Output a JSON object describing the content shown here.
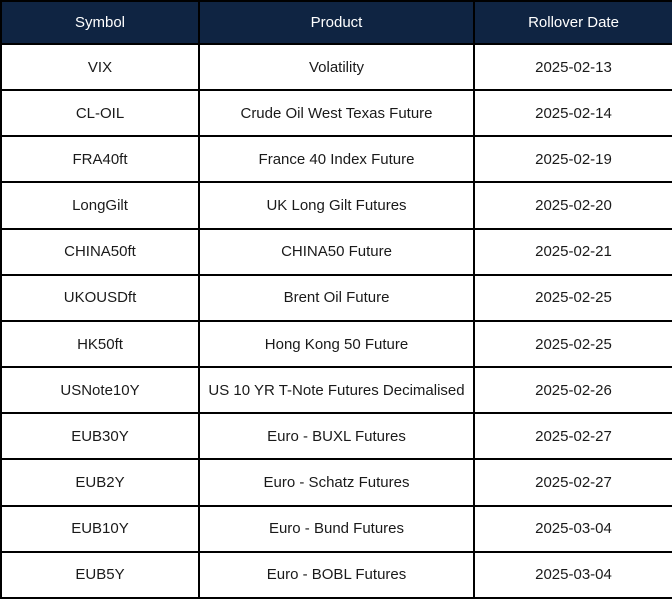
{
  "table": {
    "columns": [
      "Symbol",
      "Product",
      "Rollover Date"
    ],
    "rows": [
      {
        "symbol": "VIX",
        "product": "Volatility",
        "rollover_date": "2025-02-13"
      },
      {
        "symbol": "CL-OIL",
        "product": "Crude Oil West Texas Future",
        "rollover_date": "2025-02-14"
      },
      {
        "symbol": "FRA40ft",
        "product": "France 40 Index Future",
        "rollover_date": "2025-02-19"
      },
      {
        "symbol": "LongGilt",
        "product": "UK Long Gilt Futures",
        "rollover_date": "2025-02-20"
      },
      {
        "symbol": "CHINA50ft",
        "product": "CHINA50 Future",
        "rollover_date": "2025-02-21"
      },
      {
        "symbol": "UKOUSDft",
        "product": "Brent Oil Future",
        "rollover_date": "2025-02-25"
      },
      {
        "symbol": "HK50ft",
        "product": "Hong Kong 50 Future",
        "rollover_date": "2025-02-25"
      },
      {
        "symbol": "USNote10Y",
        "product": "US 10 YR T-Note Futures Decimalised",
        "rollover_date": "2025-02-26"
      },
      {
        "symbol": "EUB30Y",
        "product": "Euro - BUXL Futures",
        "rollover_date": "2025-02-27"
      },
      {
        "symbol": "EUB2Y",
        "product": "Euro - Schatz Futures",
        "rollover_date": "2025-02-27"
      },
      {
        "symbol": "EUB10Y",
        "product": "Euro - Bund Futures",
        "rollover_date": "2025-03-04"
      },
      {
        "symbol": "EUB5Y",
        "product": "Euro - BOBL Futures",
        "rollover_date": "2025-03-04"
      }
    ]
  },
  "colors": {
    "header_bg": "#0f2442",
    "header_text": "#ffffff",
    "body_bg": "#ffffff",
    "border": "#000000"
  },
  "chart_data": {
    "type": "table",
    "title": "",
    "columns": [
      "Symbol",
      "Product",
      "Rollover Date"
    ],
    "rows": [
      [
        "VIX",
        "Volatility",
        "2025-02-13"
      ],
      [
        "CL-OIL",
        "Crude Oil West Texas Future",
        "2025-02-14"
      ],
      [
        "FRA40ft",
        "France 40 Index Future",
        "2025-02-19"
      ],
      [
        "LongGilt",
        "UK Long Gilt Futures",
        "2025-02-20"
      ],
      [
        "CHINA50ft",
        "CHINA50 Future",
        "2025-02-21"
      ],
      [
        "UKOUSDft",
        "Brent Oil Future",
        "2025-02-25"
      ],
      [
        "HK50ft",
        "Hong Kong 50 Future",
        "2025-02-25"
      ],
      [
        "USNote10Y",
        "US 10 YR T-Note Futures Decimalised",
        "2025-02-26"
      ],
      [
        "EUB30Y",
        "Euro - BUXL Futures",
        "2025-02-27"
      ],
      [
        "EUB2Y",
        "Euro - Schatz Futures",
        "2025-02-27"
      ],
      [
        "EUB10Y",
        "Euro - Bund Futures",
        "2025-03-04"
      ],
      [
        "EUB5Y",
        "Euro - BOBL Futures",
        "2025-03-04"
      ]
    ]
  }
}
